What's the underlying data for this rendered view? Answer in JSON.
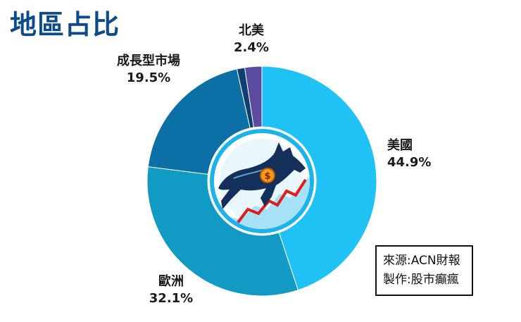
{
  "title": "地區占比",
  "chart_data": {
    "type": "pie",
    "variant": "donut",
    "title": "地區占比",
    "slices": [
      {
        "label": "美國",
        "value": 44.9,
        "display": "44.9%",
        "color": "#20c2f5"
      },
      {
        "label": "歐洲",
        "value": 32.1,
        "display": "32.1%",
        "color": "#119ac4"
      },
      {
        "label": "成長型市場",
        "value": 19.5,
        "display": "19.5%",
        "color": "#0c6fa6"
      },
      {
        "label": "",
        "value": 1.1,
        "display": "",
        "color": "#0c3f73"
      },
      {
        "label": "北美",
        "value": 2.4,
        "display": "2.4%",
        "color": "#5a4aa0"
      }
    ]
  },
  "source": {
    "line1": "來源:ACN財報",
    "line2": "製作:股市癲瘋"
  },
  "logo": {
    "icon": "bull-stock-chart-logo"
  }
}
